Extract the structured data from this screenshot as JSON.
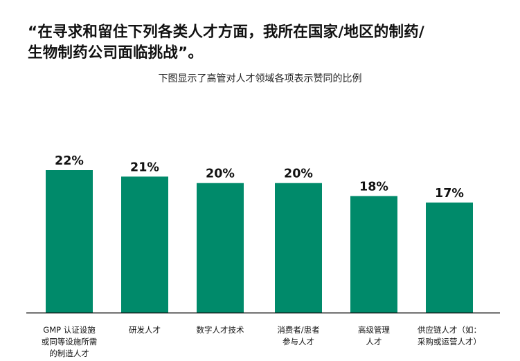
{
  "title_lines": [
    "“在寻求和留住下列各类人才方面，我所在国家/地区的制药/",
    "生物制药公司面临挑战”。"
  ],
  "subtitle": "下图显示了高管对人才领域各项表示赞同的比例",
  "colors": {
    "bar": "#008a6a",
    "axis": "#111111",
    "text": "#111111"
  },
  "chart_data": {
    "type": "bar",
    "title": "“在寻求和留住下列各类人才方面，我所在国家/地区的制药/生物制药公司面临挑战”。",
    "subtitle": "下图显示了高管对人才领域各项表示赞同的比例",
    "categories": [
      [
        "GMP 认证设施",
        "或同等设施所需",
        "的制造人才"
      ],
      [
        "研发人才"
      ],
      [
        "数字人才技术"
      ],
      [
        "消费者/患者",
        "参与人才"
      ],
      [
        "高级管理",
        "人才"
      ],
      [
        "供应链人才（如：",
        "采购或运营人才）"
      ]
    ],
    "values": [
      22,
      21,
      20,
      20,
      18,
      17
    ],
    "value_labels": [
      "22%",
      "21%",
      "20%",
      "20%",
      "18%",
      "17%"
    ],
    "unit": "%",
    "ylim": [
      0,
      22
    ],
    "grid": false,
    "legend": "none"
  }
}
